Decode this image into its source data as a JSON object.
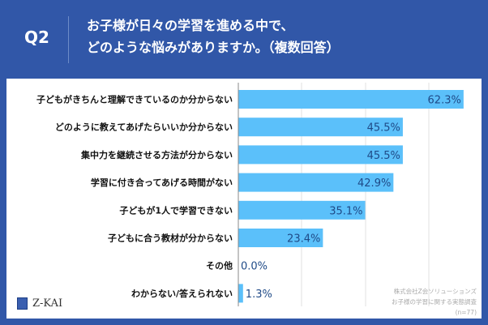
{
  "header": {
    "question": "Q2",
    "title_line1": "お子様が日々の学習を進める中で、",
    "title_line2": "どのような悩みがありますか。（複数回答）"
  },
  "footer": {
    "logo": "Z-KAI",
    "source_line1": "株式会社Z会ソリューションズ",
    "source_line2": "お子様の学習に関する実態調査",
    "n": "(n=77)"
  },
  "chart_data": {
    "type": "bar",
    "orientation": "horizontal",
    "categories": [
      "子どもがきちんと理解できているのか分からない",
      "どのように教えてあげたらいいか分からない",
      "集中力を継続させる方法が分からない",
      "学習に付き合ってあげる時間がない",
      "子どもが1人で学習できない",
      "子どもに合う教材が分からない",
      "その他",
      "わからない/答えられない"
    ],
    "values": [
      62.3,
      45.5,
      45.5,
      42.9,
      35.1,
      23.4,
      0.0,
      1.3
    ],
    "labels": [
      "62.3%",
      "45.5%",
      "45.5%",
      "42.9%",
      "35.1%",
      "23.4%",
      "0.0%",
      "1.3%"
    ],
    "unit": "%",
    "grid": true,
    "colors": {
      "bar": "#5bc0fa",
      "value_text": "#1f4a87",
      "background": "#3157a8"
    }
  }
}
